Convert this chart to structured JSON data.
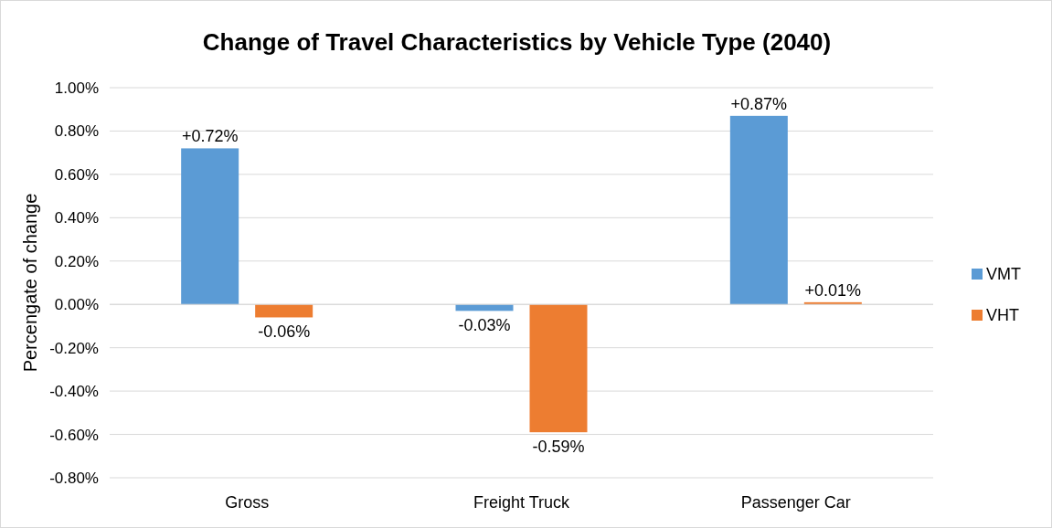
{
  "chart_data": {
    "type": "bar",
    "title": "Change of Travel Characteristics by Vehicle Type (2040)",
    "ylabel": "Percengate of change",
    "categories": [
      "Gross",
      "Freight Truck",
      "Passenger Car"
    ],
    "series": [
      {
        "name": "VMT",
        "color": "#5b9bd5",
        "values": [
          0.72,
          -0.03,
          0.87
        ],
        "value_labels": [
          "+0.72%",
          "-0.03%",
          "+0.87%"
        ]
      },
      {
        "name": "VHT",
        "color": "#ed7d31",
        "values": [
          -0.06,
          -0.59,
          0.01
        ],
        "value_labels": [
          "-0.06%",
          "-0.59%",
          "+0.01%"
        ]
      }
    ],
    "ylim": [
      -0.8,
      1.0
    ],
    "yticks": [
      {
        "value": -0.8,
        "label": "-0.80%"
      },
      {
        "value": -0.6,
        "label": "-0.60%"
      },
      {
        "value": -0.4,
        "label": "-0.40%"
      },
      {
        "value": -0.2,
        "label": "-0.20%"
      },
      {
        "value": 0,
        "label": "0.00%"
      },
      {
        "value": 0.2,
        "label": "0.20%"
      },
      {
        "value": 0.4,
        "label": "0.40%"
      },
      {
        "value": 0.6,
        "label": "0.60%"
      },
      {
        "value": 0.8,
        "label": "0.80%"
      },
      {
        "value": 1.0,
        "label": "1.00%"
      }
    ],
    "grid": "y",
    "legend": "right"
  }
}
